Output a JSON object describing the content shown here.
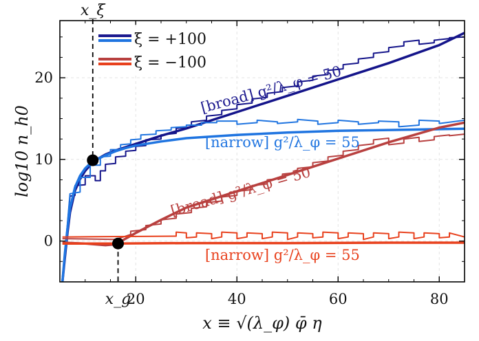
{
  "chart_data": {
    "type": "line",
    "xlabel": "x ≡ √(λ_φ) φ̄ η",
    "ylabel": "log10 n_h0",
    "xlim": [
      5,
      85
    ],
    "ylim": [
      -5,
      27
    ],
    "xticks": [
      20,
      40,
      60,
      80
    ],
    "yticks": [
      0,
      10,
      20
    ],
    "grid": true,
    "legend_position": "top-left",
    "legend": [
      {
        "label": "ξ = +100",
        "colors": [
          "#1d1a8f",
          "#1f74e0"
        ]
      },
      {
        "label": "ξ = −100",
        "colors": [
          "#b8403f",
          "#e8401c"
        ]
      }
    ],
    "series": [
      {
        "key": "pos_broad_smooth",
        "color": "#14148a",
        "width": 3.5,
        "x": [
          5.5,
          6,
          6.5,
          7,
          8,
          9,
          10,
          11,
          12,
          14,
          16,
          18,
          20,
          25,
          30,
          40,
          50,
          60,
          70,
          80,
          85
        ],
        "y": [
          -5,
          -2,
          1,
          3.5,
          6.2,
          7.6,
          8.6,
          9.3,
          9.9,
          10.6,
          11.1,
          11.5,
          11.9,
          12.9,
          13.8,
          15.8,
          17.8,
          19.8,
          21.8,
          24.0,
          25.5
        ]
      },
      {
        "key": "pos_broad_step",
        "color": "#14148a",
        "width": 2,
        "x": [
          5.5,
          7,
          8,
          8,
          10,
          10,
          12,
          12,
          13,
          13,
          14,
          14,
          16,
          16,
          18,
          18,
          20,
          20,
          22,
          22,
          25,
          25,
          28,
          28,
          31,
          31,
          34,
          34,
          37,
          37,
          40,
          40,
          43,
          43,
          46,
          46,
          49,
          49,
          52,
          52,
          55,
          55,
          58,
          58,
          61,
          61,
          64,
          64,
          67,
          67,
          70,
          70,
          73,
          73,
          76,
          76,
          79,
          79,
          82,
          82,
          85
        ],
        "y": [
          -5,
          5.5,
          5.6,
          6.8,
          6.9,
          8.0,
          8.0,
          7.4,
          7.4,
          8.6,
          8.6,
          9.4,
          9.5,
          10.3,
          10.4,
          11.0,
          11.1,
          11.6,
          11.7,
          12.4,
          12.5,
          13.0,
          13.2,
          13.8,
          14.0,
          14.6,
          14.8,
          15.3,
          15.5,
          16.0,
          16.2,
          16.7,
          16.9,
          17.4,
          17.6,
          18.1,
          18.3,
          18.8,
          19.0,
          19.5,
          19.7,
          20.2,
          20.4,
          20.9,
          21.1,
          21.6,
          21.8,
          22.3,
          22.5,
          23.0,
          23.2,
          23.7,
          23.9,
          24.4,
          24.6,
          24.1,
          24.3,
          24.6,
          24.8,
          24.9,
          25.0
        ]
      },
      {
        "key": "pos_narrow_smooth",
        "color": "#1f74e0",
        "width": 3.5,
        "x": [
          5.5,
          6,
          6.5,
          7,
          8,
          9,
          10,
          11,
          12,
          14,
          16,
          18,
          20,
          25,
          30,
          40,
          50,
          60,
          70,
          80,
          85
        ],
        "y": [
          -5,
          -1.5,
          1.5,
          4,
          6.6,
          8.0,
          8.9,
          9.5,
          9.9,
          10.5,
          11.0,
          11.4,
          11.7,
          12.2,
          12.6,
          13.0,
          13.3,
          13.5,
          13.6,
          13.7,
          13.75
        ]
      },
      {
        "key": "pos_narrow_step",
        "color": "#1f74e0",
        "width": 2,
        "x": [
          5.5,
          7,
          9,
          9,
          11,
          11,
          13,
          13,
          15,
          15,
          17,
          17,
          19,
          19,
          21,
          21,
          24,
          24,
          27,
          27,
          30,
          30,
          33,
          33,
          36,
          36,
          40,
          40,
          44,
          44,
          48,
          48,
          52,
          52,
          56,
          56,
          60,
          60,
          64,
          64,
          68,
          68,
          72,
          72,
          76,
          76,
          80,
          80,
          85
        ],
        "y": [
          -5,
          5.8,
          6.0,
          7.8,
          7.8,
          9.3,
          9.3,
          10.3,
          10.4,
          11.2,
          11.2,
          11.8,
          11.9,
          12.4,
          12.5,
          13.0,
          13.1,
          13.5,
          13.6,
          13.9,
          14.0,
          14.2,
          14.2,
          14.5,
          14.5,
          14.7,
          14.7,
          14.3,
          14.5,
          14.8,
          14.6,
          14.4,
          14.6,
          14.9,
          14.7,
          14.3,
          14.5,
          14.8,
          14.6,
          14.3,
          14.5,
          14.7,
          14.6,
          14.0,
          14.2,
          14.8,
          14.7,
          14.4,
          14.8
        ]
      },
      {
        "key": "neg_broad_smooth",
        "color": "#b8403f",
        "width": 3.5,
        "x": [
          5.5,
          10,
          14,
          16,
          18,
          20,
          25,
          30,
          40,
          50,
          60,
          70,
          80,
          85
        ],
        "y": [
          -0.2,
          -0.3,
          -0.5,
          -0.4,
          0.3,
          1.0,
          2.6,
          4.1,
          6.1,
          8.1,
          10.1,
          12.1,
          13.9,
          14.5
        ]
      },
      {
        "key": "neg_broad_step",
        "color": "#b8403f",
        "width": 2,
        "x": [
          5.5,
          16,
          19,
          19,
          22,
          22,
          25,
          25,
          28,
          28,
          31,
          31,
          34,
          34,
          37,
          37,
          40,
          40,
          43,
          43,
          46,
          46,
          49,
          49,
          52,
          52,
          55,
          55,
          58,
          58,
          61,
          61,
          64,
          64,
          67,
          67,
          70,
          70,
          73,
          73,
          76,
          76,
          79,
          79,
          82,
          82,
          85
        ],
        "y": [
          0.3,
          0.2,
          0.8,
          1.2,
          1.4,
          1.9,
          2.1,
          2.6,
          2.8,
          3.3,
          3.5,
          4.0,
          4.2,
          4.7,
          4.9,
          5.4,
          5.6,
          6.1,
          6.3,
          6.8,
          7.0,
          7.5,
          7.7,
          8.2,
          8.4,
          8.9,
          9.1,
          9.6,
          9.8,
          10.3,
          10.5,
          11.0,
          11.2,
          11.7,
          11.9,
          12.4,
          12.6,
          11.8,
          12.0,
          12.5,
          12.7,
          12.2,
          12.4,
          12.8,
          13.0,
          12.9,
          13.1
        ]
      },
      {
        "key": "neg_narrow_smooth",
        "color": "#e8401c",
        "width": 3.5,
        "x": [
          5.5,
          15,
          30,
          50,
          70,
          85
        ],
        "y": [
          -0.3,
          -0.3,
          -0.25,
          -0.25,
          -0.2,
          -0.2
        ]
      },
      {
        "key": "neg_narrow_step",
        "color": "#e8401c",
        "width": 2,
        "x": [
          5.5,
          28,
          28,
          30,
          30,
          32,
          32,
          35,
          35,
          37,
          37,
          40,
          40,
          42,
          42,
          45,
          45,
          47,
          47,
          50,
          50,
          52,
          52,
          55,
          55,
          57,
          57,
          60,
          60,
          62,
          62,
          65,
          65,
          67,
          67,
          70,
          70,
          72,
          72,
          75,
          75,
          77,
          77,
          80,
          80,
          82,
          82,
          85
        ],
        "y": [
          0.5,
          0.6,
          1.1,
          1.0,
          0.4,
          0.5,
          1.0,
          0.9,
          0.3,
          0.5,
          1.1,
          1.0,
          0.3,
          0.5,
          1.0,
          0.9,
          0.3,
          0.5,
          1.1,
          1.0,
          0.2,
          0.5,
          1.0,
          0.9,
          0.4,
          0.5,
          1.1,
          1.0,
          0.3,
          0.5,
          1.0,
          0.9,
          0.2,
          0.5,
          1.0,
          0.9,
          0.3,
          0.5,
          1.1,
          1.0,
          0.3,
          0.5,
          1.0,
          0.9,
          0.4,
          0.5,
          1.0,
          0.5
        ]
      }
    ],
    "markers": [
      {
        "key": "x_xi",
        "label": "x_ξ",
        "x": 11.5,
        "y": 9.9
      },
      {
        "key": "x_g",
        "label": "x_g",
        "x": 16.5,
        "y": -0.3
      }
    ],
    "annotations": [
      {
        "key": "pos_broad",
        "text": "[broad] g²/λ_φ = 50",
        "color": "#1d1a8f",
        "x": 47,
        "y": 18.0
      },
      {
        "key": "pos_narrow",
        "text": "[narrow] g²/λ_φ = 55",
        "color": "#1f74e0",
        "x": 49,
        "y": 11.5
      },
      {
        "key": "neg_broad",
        "text": "[broad] g²/λ_φ = 50",
        "color": "#b8403f",
        "x": 41,
        "y": 5.5
      },
      {
        "key": "neg_narrow",
        "text": "[narrow] g²/λ_φ = 55",
        "color": "#e8401c",
        "x": 49,
        "y": -2.3
      }
    ]
  }
}
